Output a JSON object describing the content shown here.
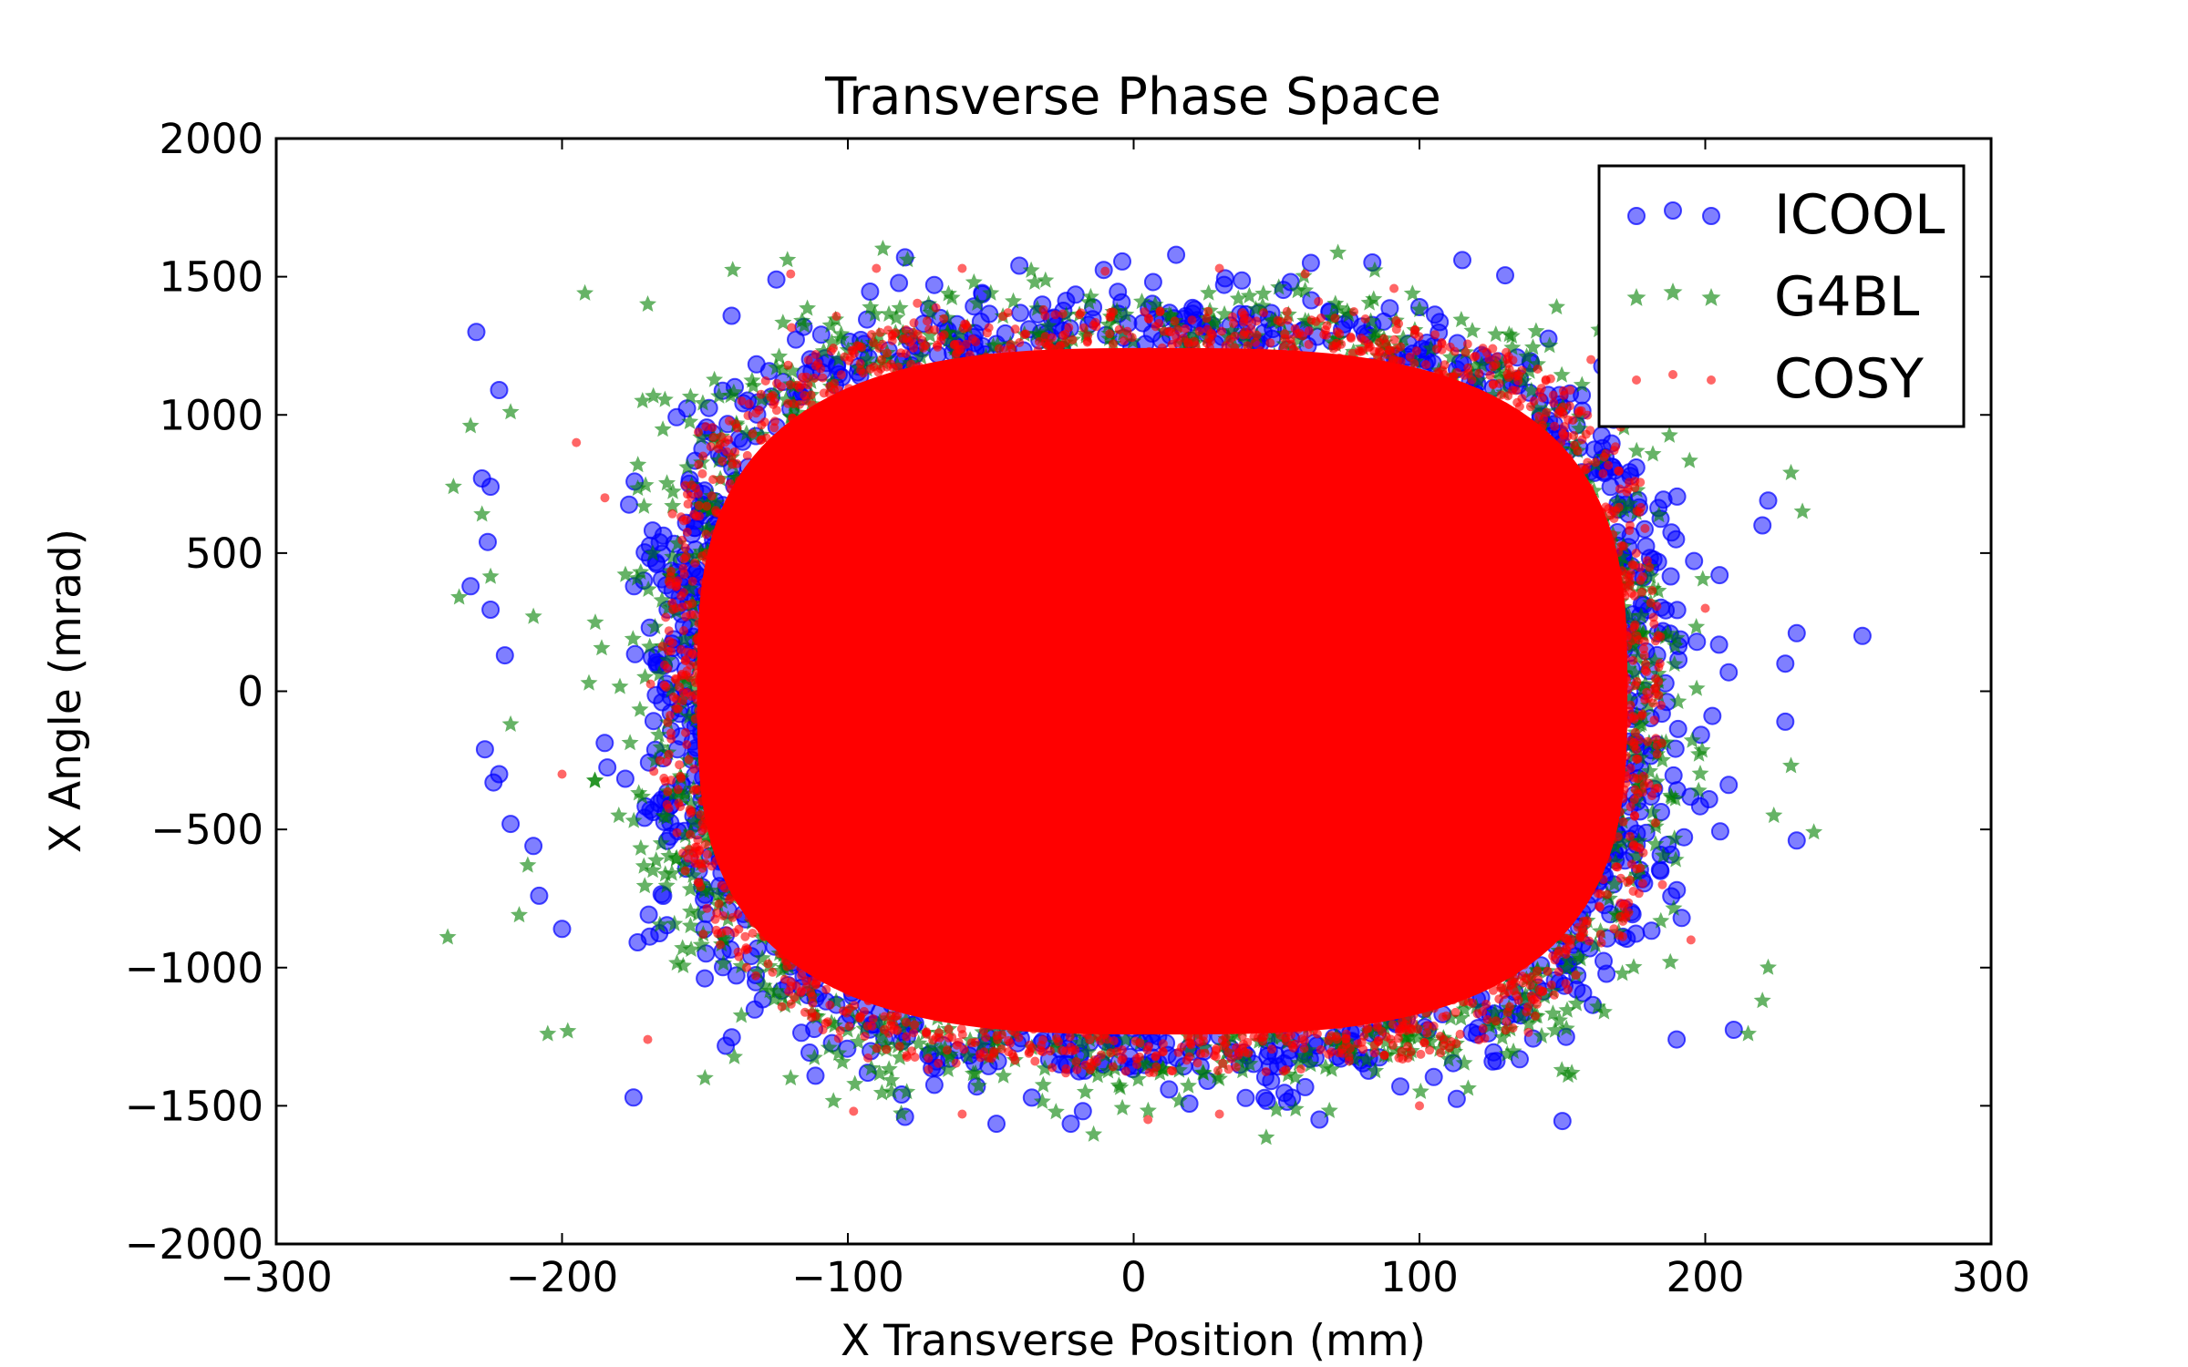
{
  "chart_data": {
    "type": "scatter",
    "title": "Transverse Phase Space",
    "xlabel": "X Transverse Position (mm)",
    "ylabel": "X Angle (mrad)",
    "xlim": [
      -300,
      300
    ],
    "ylim": [
      -2000,
      2000
    ],
    "x_ticks": [
      -300,
      -200,
      -100,
      0,
      100,
      200,
      300
    ],
    "y_ticks": [
      -2000,
      -1500,
      -1000,
      -500,
      0,
      500,
      1000,
      1500,
      2000
    ],
    "x_tick_labels": [
      "−300",
      "−200",
      "−100",
      "0",
      "100",
      "200",
      "300"
    ],
    "y_tick_labels": [
      "−2000",
      "−1500",
      "−1000",
      "−500",
      "0",
      "500",
      "1000",
      "1500",
      "2000"
    ],
    "grid": false,
    "legend_position": "top-right",
    "distribution": {
      "x_center": 10,
      "x_half_width_core": 175,
      "y_center": 0,
      "y_half_height_core": 1380,
      "x_extent": [
        -255,
        255
      ],
      "y_extent": [
        -1570,
        1570
      ]
    },
    "series": [
      {
        "name": "ICOOL",
        "marker": "circle",
        "color": "#0000ff",
        "alpha": 0.5,
        "outliers": [
          [
            -230,
            1300
          ],
          [
            -222,
            1090
          ],
          [
            -228,
            770
          ],
          [
            -225,
            740
          ],
          [
            -226,
            540
          ],
          [
            -232,
            380
          ],
          [
            -225,
            295
          ],
          [
            -220,
            130
          ],
          [
            -227,
            -210
          ],
          [
            -222,
            -300
          ],
          [
            -224,
            -330
          ],
          [
            -218,
            -480
          ],
          [
            -210,
            -560
          ],
          [
            -208,
            -740
          ],
          [
            -200,
            -860
          ],
          [
            -175,
            -1470
          ],
          [
            -80,
            -1540
          ],
          [
            -48,
            -1565
          ],
          [
            -22,
            -1565
          ],
          [
            65,
            -1550
          ],
          [
            150,
            -1555
          ],
          [
            190,
            -1260
          ],
          [
            210,
            -1225
          ],
          [
            232,
            -540
          ],
          [
            228,
            -110
          ],
          [
            228,
            100
          ],
          [
            232,
            210
          ],
          [
            255,
            200
          ],
          [
            222,
            690
          ],
          [
            220,
            600
          ],
          [
            205,
            420
          ],
          [
            -80,
            1570
          ],
          [
            -4,
            1555
          ],
          [
            62,
            1550
          ],
          [
            115,
            1560
          ],
          [
            130,
            1505
          ],
          [
            -40,
            1540
          ],
          [
            -125,
            1490
          ]
        ]
      },
      {
        "name": "G4BL",
        "marker": "star",
        "color": "#008000",
        "alpha": 0.6,
        "outliers": [
          [
            -240,
            -890
          ],
          [
            -238,
            740
          ],
          [
            -236,
            340
          ],
          [
            -232,
            960
          ],
          [
            -228,
            640
          ],
          [
            -225,
            415
          ],
          [
            -218,
            1010
          ],
          [
            -212,
            -630
          ],
          [
            -215,
            -810
          ],
          [
            -205,
            -1240
          ],
          [
            -198,
            -1230
          ],
          [
            -218,
            -120
          ],
          [
            -210,
            270
          ],
          [
            -192,
            1440
          ],
          [
            -170,
            1400
          ],
          [
            230,
            790
          ],
          [
            234,
            650
          ],
          [
            230,
            -270
          ],
          [
            238,
            -510
          ],
          [
            224,
            -450
          ],
          [
            222,
            -1000
          ],
          [
            220,
            -1120
          ],
          [
            215,
            -1240
          ],
          [
            152,
            -1390
          ],
          [
            -120,
            -1400
          ],
          [
            -150,
            -1400
          ],
          [
            60,
            1450
          ],
          [
            -50,
            1440
          ],
          [
            148,
            1390
          ],
          [
            100,
            1380
          ]
        ]
      },
      {
        "name": "COSY",
        "marker": "dot",
        "color": "#ff0000",
        "alpha": 0.6,
        "outliers": [
          [
            -98,
            -1520
          ],
          [
            -60,
            -1530
          ],
          [
            5,
            -1550
          ],
          [
            30,
            -1530
          ],
          [
            100,
            -1500
          ],
          [
            -120,
            1510
          ],
          [
            -90,
            1530
          ],
          [
            -60,
            1530
          ],
          [
            -10,
            1520
          ],
          [
            30,
            1530
          ],
          [
            60,
            1510
          ],
          [
            -170,
            -1260
          ],
          [
            180,
            1260
          ],
          [
            -195,
            900
          ],
          [
            195,
            -900
          ],
          [
            200,
            300
          ],
          [
            -200,
            -300
          ],
          [
            185,
            -700
          ],
          [
            -185,
            700
          ],
          [
            160,
            1200
          ]
        ]
      }
    ]
  }
}
